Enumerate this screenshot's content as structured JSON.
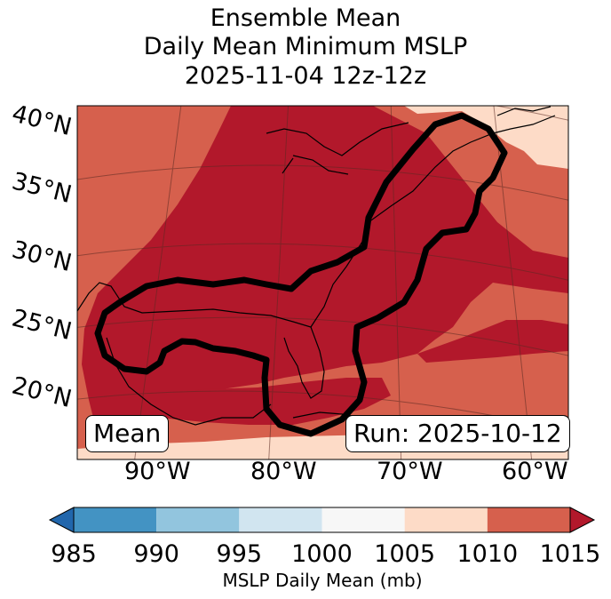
{
  "title": {
    "line1": "Ensemble Mean",
    "line2": "Daily Mean Minimum MSLP",
    "line3": "2025-11-04 12z-12z"
  },
  "map": {
    "lat_labels": [
      "40°N",
      "35°N",
      "30°N",
      "25°N",
      "20°N"
    ],
    "lon_labels": [
      "90°W",
      "80°W",
      "70°W",
      "60°W"
    ],
    "left_box": "Mean",
    "right_box": "Run: 2025-10-12",
    "field_colors": {
      "dark_red": "#b2182b",
      "medium_red": "#d6604d",
      "light_peach": "#fddbc7",
      "contour": "#000000"
    }
  },
  "colorbar": {
    "label": "MSLP Daily Mean (mb)",
    "ticks": [
      "985",
      "990",
      "995",
      "1000",
      "1005",
      "1010",
      "1015"
    ],
    "colors": [
      "#2166ac",
      "#4393c3",
      "#92c5de",
      "#d1e5f0",
      "#f7f7f7",
      "#fddbc7",
      "#d6604d",
      "#b2182b"
    ]
  }
}
